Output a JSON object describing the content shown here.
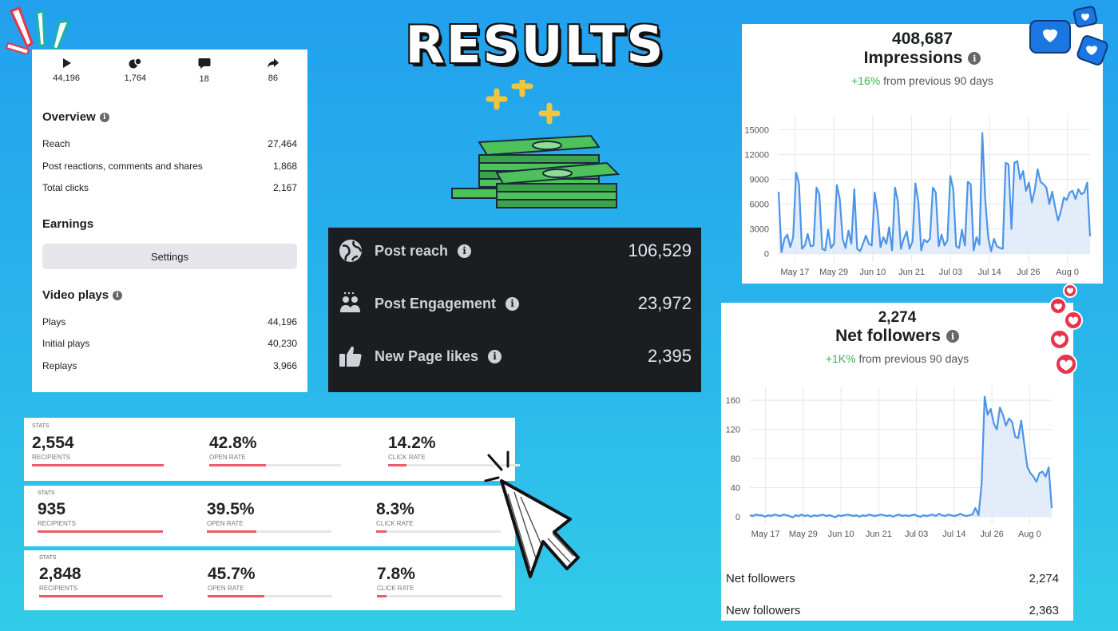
{
  "title": "RESULTS",
  "video_card": {
    "stats": [
      {
        "icon": "play-icon",
        "value": "44,196"
      },
      {
        "icon": "reactions-icon",
        "value": "1,764"
      },
      {
        "icon": "comment-icon",
        "value": "18"
      },
      {
        "icon": "share-icon",
        "value": "86"
      }
    ],
    "overview": {
      "title": "Overview",
      "rows": [
        {
          "label": "Reach",
          "value": "27,464"
        },
        {
          "label": "Post reactions, comments and shares",
          "value": "1,868"
        },
        {
          "label": "Total clicks",
          "value": "2,167"
        }
      ]
    },
    "earnings": {
      "title": "Earnings",
      "button": "Settings"
    },
    "video_plays": {
      "title": "Video plays",
      "rows": [
        {
          "label": "Plays",
          "value": "44,196"
        },
        {
          "label": "Initial plays",
          "value": "40,230"
        },
        {
          "label": "Replays",
          "value": "3,966"
        }
      ]
    }
  },
  "page_insights": {
    "rows": [
      {
        "icon": "globe-icon",
        "label": "Post reach",
        "value": "106,529"
      },
      {
        "icon": "people-icon",
        "label": "Post Engagement",
        "value": "23,972"
      },
      {
        "icon": "thumbs-up-icon",
        "label": "New Page likes",
        "value": "2,395"
      }
    ]
  },
  "email_stats": [
    {
      "stats_label": "STATS",
      "recipients": "2,554",
      "recipients_label": "RECIPIENTS",
      "open_rate": "42.8%",
      "open_rate_label": "OPEN RATE",
      "click_rate": "14.2%",
      "click_rate_label": "CLICK RATE",
      "recipients_fill": 1.0,
      "open_fill": 0.428,
      "click_fill": 0.142
    },
    {
      "stats_label": "STATS",
      "recipients": "935",
      "recipients_label": "RECIPIENTS",
      "open_rate": "39.5%",
      "open_rate_label": "OPEN RATE",
      "click_rate": "8.3%",
      "click_rate_label": "CLICK RATE",
      "recipients_fill": 1.0,
      "open_fill": 0.395,
      "click_fill": 0.083
    },
    {
      "stats_label": "STATS",
      "recipients": "2,848",
      "recipients_label": "RECIPIENTS",
      "open_rate": "45.7%",
      "open_rate_label": "OPEN RATE",
      "click_rate": "7.8%",
      "click_rate_label": "CLICK RATE",
      "recipients_fill": 1.0,
      "open_fill": 0.457,
      "click_fill": 0.078
    }
  ],
  "impressions": {
    "value": "408,687",
    "label": "Impressions",
    "change": "+16%",
    "change_text": "from previous 90 days"
  },
  "net_followers": {
    "value": "2,274",
    "label": "Net followers",
    "change": "+1K%",
    "change_text": "from previous 90 days",
    "rows": [
      {
        "label": "Net followers",
        "value": "2,274"
      },
      {
        "label": "New followers",
        "value": "2,363"
      }
    ]
  },
  "colors": {
    "line": "#4c94e8",
    "area": "#dbe8f8",
    "positive": "#3ab54a",
    "stat_bar": "#ee5a6a"
  },
  "chart_data": [
    {
      "type": "area",
      "title": "Impressions",
      "x_ticks": [
        "May 17",
        "May 29",
        "Jun 10",
        "Jun 21",
        "Jul 03",
        "Jul 14",
        "Jul 26",
        "Aug 0"
      ],
      "y_ticks": [
        0,
        3000,
        6000,
        9000,
        12000,
        15000
      ],
      "ylim": [
        -1000,
        16000
      ],
      "grid": true,
      "series": [
        {
          "values": [
            7500,
            200,
            1800,
            2300,
            800,
            2000,
            9800,
            8500,
            600,
            1000,
            2400,
            900,
            1000,
            8000,
            7200,
            600,
            400,
            2900,
            700,
            1200,
            8300,
            6700,
            1800,
            700,
            2800,
            1200,
            7800,
            600,
            300,
            1200,
            2200,
            1200,
            1000,
            7400,
            5100,
            800,
            2000,
            1200,
            3200,
            400,
            8000,
            6300,
            600,
            1800,
            2700,
            600,
            1500,
            8500,
            6300,
            400,
            1700,
            1400,
            1800,
            8000,
            7400,
            900,
            2300,
            1000,
            1600,
            9400,
            7800,
            900,
            700,
            2900,
            1000,
            8700,
            8400,
            400,
            2000,
            1100,
            14600,
            6500,
            2000,
            300,
            1800,
            900,
            700,
            600,
            11000,
            10800,
            3000,
            11000,
            11200,
            9000,
            10000,
            7600,
            8600,
            6200,
            7700,
            10200,
            8700,
            8400,
            8000,
            6000,
            7500,
            5600,
            4000,
            5200,
            6800,
            6500,
            7400,
            7600,
            6600,
            7800,
            7200,
            7400,
            8600,
            2100
          ]
        }
      ]
    },
    {
      "type": "area",
      "title": "Net followers",
      "x_ticks": [
        "May 17",
        "May 29",
        "Jun 10",
        "Jun 21",
        "Jul 03",
        "Jul 14",
        "Jul 26",
        "Aug 0"
      ],
      "y_ticks": [
        0,
        40,
        80,
        120,
        160
      ],
      "ylim": [
        -10,
        170
      ],
      "grid": true,
      "series": [
        {
          "values": [
            2,
            1,
            3,
            2,
            2,
            0,
            2,
            1,
            3,
            2,
            1,
            3,
            2,
            1,
            -1,
            2,
            1,
            3,
            1,
            2,
            0,
            2,
            1,
            2,
            3,
            1,
            2,
            1,
            -1,
            2,
            1,
            2,
            3,
            2,
            1,
            2,
            0,
            2,
            1,
            3,
            2,
            1,
            2,
            3,
            2,
            1,
            2,
            0,
            2,
            3,
            1,
            2,
            1,
            2,
            3,
            1,
            0,
            2,
            1,
            2,
            3,
            1,
            4,
            2,
            1,
            3,
            2,
            1,
            2,
            4,
            2,
            1,
            2,
            3,
            12,
            2,
            45,
            165,
            140,
            148,
            128,
            120,
            150,
            140,
            125,
            135,
            130,
            110,
            108,
            132,
            100,
            68,
            60,
            55,
            48,
            60,
            62,
            55,
            68,
            12
          ]
        }
      ]
    }
  ]
}
